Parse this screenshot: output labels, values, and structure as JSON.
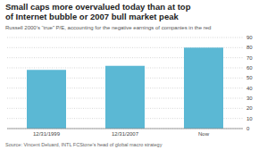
{
  "chart_data": {
    "type": "bar",
    "title": [
      "Small caps more overvalued today than at top",
      "of Internet bubble or 2007 bull market peak"
    ],
    "subtitle": "Russell 2000’s “true” P/E, accounting for the negative earnings of companies in the red",
    "source": "Source: Vincent Deluard, INTL FCStone’s head of global macro strategy",
    "categories": [
      "12/31/1999",
      "12/31/2007",
      "Now"
    ],
    "values": [
      58,
      62,
      80
    ],
    "color": "#5bb8d4",
    "ylim": [
      0,
      90
    ],
    "yticks": [
      0,
      10,
      20,
      30,
      40,
      50,
      60,
      70,
      80,
      90
    ],
    "grid": true
  }
}
